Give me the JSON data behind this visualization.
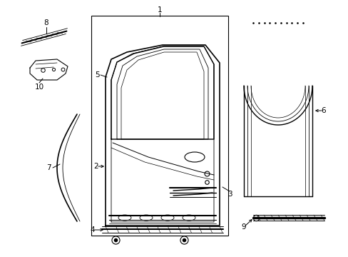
{
  "bg_color": "#ffffff",
  "line_color": "#000000",
  "figsize": [
    4.89,
    3.6
  ],
  "dpi": 100
}
